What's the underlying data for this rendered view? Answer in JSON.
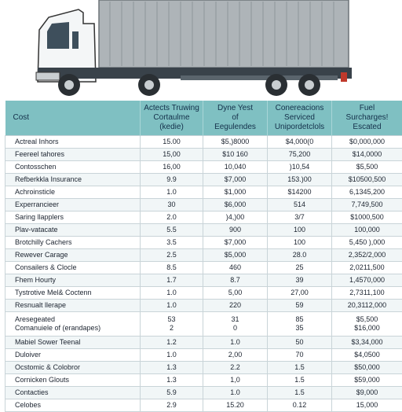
{
  "header": {
    "columns": [
      [
        "Cost"
      ],
      [
        "Actects Truwing",
        "Cortaulme",
        "(kedie)"
      ],
      [
        "Dyne Yest",
        "of",
        "Eegulendes"
      ],
      [
        "Conereacions",
        "Serviced",
        "Unipordetclols"
      ],
      [
        "Fuel",
        "Surcharges!",
        "Escated"
      ]
    ]
  },
  "rows": [
    [
      "Actreal Inhors",
      "15.00",
      "$5,)8000",
      "$4,000(0",
      "$0,000,000"
    ],
    [
      "Feereel tahores",
      "15,00",
      "$10 160",
      "75,200",
      "$14,0000"
    ],
    [
      "Contosschen",
      "16,00",
      "10,040",
      ")10,54",
      "$5,500"
    ],
    [
      "Refberkkla Insurance",
      "9.9",
      "$7,000",
      "153.)00",
      "$10500,500"
    ],
    [
      "Achroinsticle",
      "1.0",
      "$1,000",
      "$14200",
      "6,1345,200"
    ],
    [
      "Experrancieer",
      "30",
      "$6,000",
      "514",
      "7,749,500"
    ],
    [
      "Saring llapplers",
      "2.0",
      ")4,)00",
      "3/7",
      "$1000,500"
    ],
    [
      "Plav-vatacate",
      "5.5",
      "900",
      "100",
      "100,000"
    ],
    [
      "Brotchilly Cachers",
      "3.5",
      "$7,000",
      "100",
      "5,450 ),000"
    ],
    [
      "Rewever Carage",
      "2.5",
      "$5,000",
      "28.0",
      "2,352/2,000"
    ],
    [
      "Consailers & Clocle",
      "8.5",
      "460",
      "25",
      "2,0211,500"
    ],
    [
      "Fhem Hourty",
      "1.7",
      "8.7",
      "39",
      "1,4570,000"
    ],
    [
      "Tystrotive Mel& Coctenn",
      "1.0",
      "5,00",
      "27,00",
      "2,7311,100"
    ],
    [
      "Resnualt llerape",
      "1.0",
      "220",
      "59",
      "20,3112,000"
    ],
    [
      [
        "Aresegeated",
        "Comanuiele of (erandapes)"
      ],
      [
        "53",
        "2"
      ],
      [
        "31",
        "0"
      ],
      [
        "85",
        "35"
      ],
      [
        "$5,500",
        "$16,000"
      ]
    ],
    [
      "Mabiel Sower Teenal",
      "1.2",
      "1.0",
      "50",
      "$3,34,000"
    ],
    [
      "Duloiver",
      "1.0",
      "2,00",
      "70",
      "$4,0500"
    ],
    [
      "Ocstomic & Colobror",
      "1.3",
      "2.2",
      "1.5",
      "$50,000"
    ],
    [
      "Cornicken Glouts",
      "1.3",
      "1,0",
      "1.5",
      "$59,000"
    ],
    [
      "Contacties",
      "5.9",
      "1.0",
      "1.5",
      "$9,000"
    ],
    [
      "Celobes",
      "2.9",
      "15.20",
      "0.12",
      "15,000"
    ]
  ]
}
